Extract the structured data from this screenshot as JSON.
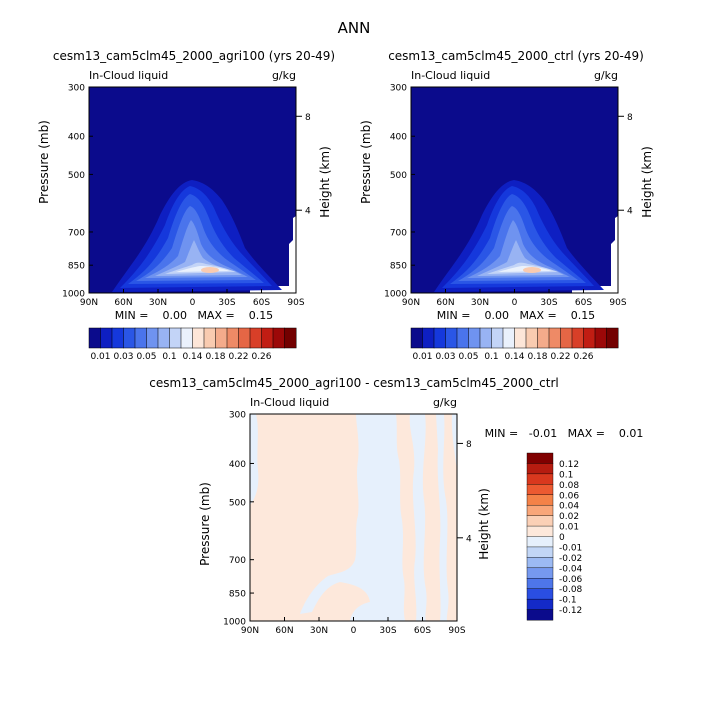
{
  "figure": {
    "title": "ANN"
  },
  "panels": {
    "agri": {
      "title": "cesm13_cam5clm45_2000_agri100 (yrs 20-49)",
      "field_label": "In-Cloud liquid",
      "units": "g/kg",
      "stats": "MIN =    0.00   MAX =    0.15"
    },
    "ctrl": {
      "title": "cesm13_cam5clm45_2000_ctrl (yrs 20-49)",
      "field_label": "In-Cloud liquid",
      "units": "g/kg",
      "stats": "MIN =    0.00   MAX =    0.15"
    },
    "diff": {
      "title": "cesm13_cam5clm45_2000_agri100 - cesm13_cam5clm45_2000_ctrl",
      "field_label": "In-Cloud liquid",
      "units": "g/kg",
      "stats": "MIN =   -0.01   MAX =    0.01"
    }
  },
  "axes": {
    "ylabel_left": "Pressure (mb)",
    "ylabel_right": "Height (km)",
    "pressure_ticks": [
      "300",
      "400",
      "500",
      "700",
      "850",
      "1000"
    ],
    "height_ticks": [
      "8",
      "4"
    ],
    "lat_ticks": [
      "90N",
      "60N",
      "30N",
      "0",
      "30S",
      "60S",
      "90S"
    ]
  },
  "colorbars": {
    "abs_labels": [
      "0.01",
      "0.03",
      "0.05",
      "0.1",
      "0.14",
      "0.18",
      "0.22",
      "0.26"
    ],
    "abs_colors": [
      "#0b0b8c",
      "#0e1fc2",
      "#1538dc",
      "#2a56e6",
      "#4a74ec",
      "#6f93f0",
      "#98b3f3",
      "#c3d4f7",
      "#eaf1fc",
      "#fde6d8",
      "#f9cbb0",
      "#f4ab8b",
      "#ee8a66",
      "#e56645",
      "#d83f28",
      "#c11d13",
      "#9c0808",
      "#730000"
    ],
    "diff_labels": [
      "0.12",
      "0.1",
      "0.08",
      "0.06",
      "0.04",
      "0.02",
      "0.01",
      "0",
      "-0.01",
      "-0.02",
      "-0.04",
      "-0.06",
      "-0.08",
      "-0.1",
      "-0.12"
    ],
    "diff_colors": [
      "#800000",
      "#b61c10",
      "#d9381e",
      "#ec5a31",
      "#f48248",
      "#f9a679",
      "#fbd0b6",
      "#fde8db",
      "#e6f0fc",
      "#c2d6f6",
      "#9cbaf3",
      "#7699ef",
      "#4e76ea",
      "#2a4ee2",
      "#142ac8",
      "#0b0b8c"
    ]
  },
  "chart_data": [
    {
      "type": "heatmap",
      "title": "cesm13_cam5clm45_2000_agri100 (yrs 20-49)",
      "field": "In-Cloud liquid",
      "units": "g/kg",
      "xlabel": "",
      "ylabel": "Pressure (mb)",
      "ylabel_right": "Height (km)",
      "x_ticks": [
        "90N",
        "60N",
        "30N",
        "0",
        "30S",
        "60S",
        "90S"
      ],
      "xlim": [
        90,
        -90
      ],
      "ylim": [
        1000,
        300
      ],
      "y_ticks": [
        300,
        400,
        500,
        700,
        850,
        1000
      ],
      "y_scale": "log",
      "min": 0.0,
      "max": 0.15,
      "levels": [
        0.01,
        0.02,
        0.03,
        0.04,
        0.05,
        0.06,
        0.08,
        0.1,
        0.12,
        0.14,
        0.16,
        0.18,
        0.2,
        0.22,
        0.24,
        0.26,
        0.28
      ],
      "max_location": {
        "lat": -20,
        "pressure": 860
      }
    },
    {
      "type": "heatmap",
      "title": "cesm13_cam5clm45_2000_ctrl (yrs 20-49)",
      "field": "In-Cloud liquid",
      "units": "g/kg",
      "xlabel": "",
      "ylabel": "Pressure (mb)",
      "ylabel_right": "Height (km)",
      "x_ticks": [
        "90N",
        "60N",
        "30N",
        "0",
        "30S",
        "60S",
        "90S"
      ],
      "xlim": [
        90,
        -90
      ],
      "ylim": [
        1000,
        300
      ],
      "y_ticks": [
        300,
        400,
        500,
        700,
        850,
        1000
      ],
      "y_scale": "log",
      "min": 0.0,
      "max": 0.15,
      "levels": [
        0.01,
        0.02,
        0.03,
        0.04,
        0.05,
        0.06,
        0.08,
        0.1,
        0.12,
        0.14,
        0.16,
        0.18,
        0.2,
        0.22,
        0.24,
        0.26,
        0.28
      ],
      "max_location": {
        "lat": -20,
        "pressure": 860
      }
    },
    {
      "type": "heatmap",
      "title": "cesm13_cam5clm45_2000_agri100 - cesm13_cam5clm45_2000_ctrl",
      "field": "In-Cloud liquid",
      "units": "g/kg",
      "xlabel": "",
      "ylabel": "Pressure (mb)",
      "ylabel_right": "Height (km)",
      "x_ticks": [
        "90N",
        "60N",
        "30N",
        "0",
        "30S",
        "60S",
        "90S"
      ],
      "xlim": [
        90,
        -90
      ],
      "ylim": [
        1000,
        300
      ],
      "y_ticks": [
        300,
        400,
        500,
        700,
        850,
        1000
      ],
      "y_scale": "log",
      "min": -0.01,
      "max": 0.01,
      "levels": [
        -0.12,
        -0.1,
        -0.08,
        -0.06,
        -0.04,
        -0.02,
        -0.01,
        0,
        0.01,
        0.02,
        0.04,
        0.06,
        0.08,
        0.1,
        0.12
      ]
    }
  ]
}
